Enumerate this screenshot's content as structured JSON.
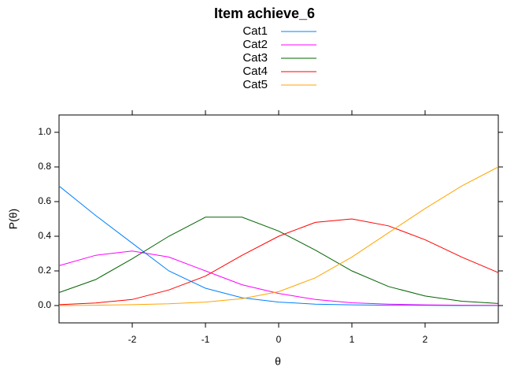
{
  "chart_data": {
    "type": "line",
    "title": "Item achieve_6",
    "xlabel": "θ",
    "ylabel": "P(θ)",
    "x": [
      -3,
      -2.5,
      -2,
      -1.5,
      -1,
      -0.5,
      0,
      0.5,
      1,
      1.5,
      2,
      2.5,
      3
    ],
    "series": [
      {
        "name": "Cat1",
        "color": "#0080ff",
        "values": [
          0.69,
          0.52,
          0.36,
          0.2,
          0.1,
          0.045,
          0.02,
          0.008,
          0.004,
          0.002,
          0.001,
          0,
          0
        ]
      },
      {
        "name": "Cat2",
        "color": "#ff00ff",
        "values": [
          0.23,
          0.29,
          0.315,
          0.28,
          0.2,
          0.12,
          0.07,
          0.035,
          0.016,
          0.008,
          0.004,
          0.002,
          0.001
        ]
      },
      {
        "name": "Cat3",
        "color": "#006400",
        "values": [
          0.075,
          0.15,
          0.27,
          0.4,
          0.51,
          0.51,
          0.43,
          0.32,
          0.2,
          0.11,
          0.055,
          0.025,
          0.012
        ]
      },
      {
        "name": "Cat4",
        "color": "#ff0000",
        "values": [
          0.005,
          0.015,
          0.035,
          0.09,
          0.17,
          0.29,
          0.4,
          0.48,
          0.5,
          0.46,
          0.38,
          0.28,
          0.19
        ]
      },
      {
        "name": "Cat5",
        "color": "#ffa500",
        "values": [
          0,
          0.002,
          0.005,
          0.01,
          0.02,
          0.04,
          0.08,
          0.16,
          0.28,
          0.42,
          0.56,
          0.69,
          0.8
        ]
      }
    ],
    "xlim": [
      -3,
      3
    ],
    "ylim": [
      -0.1,
      1.1
    ],
    "xticks": [
      -2,
      -1,
      0,
      1,
      2
    ],
    "yticks": [
      {
        "value": 0,
        "label": "0.0"
      },
      {
        "value": 0.2,
        "label": "0.2"
      },
      {
        "value": 0.4,
        "label": "0.4"
      },
      {
        "value": 0.6,
        "label": "0.6"
      },
      {
        "value": 0.8,
        "label": "0.8"
      },
      {
        "value": 1,
        "label": "1.0"
      }
    ],
    "legend": "top"
  }
}
